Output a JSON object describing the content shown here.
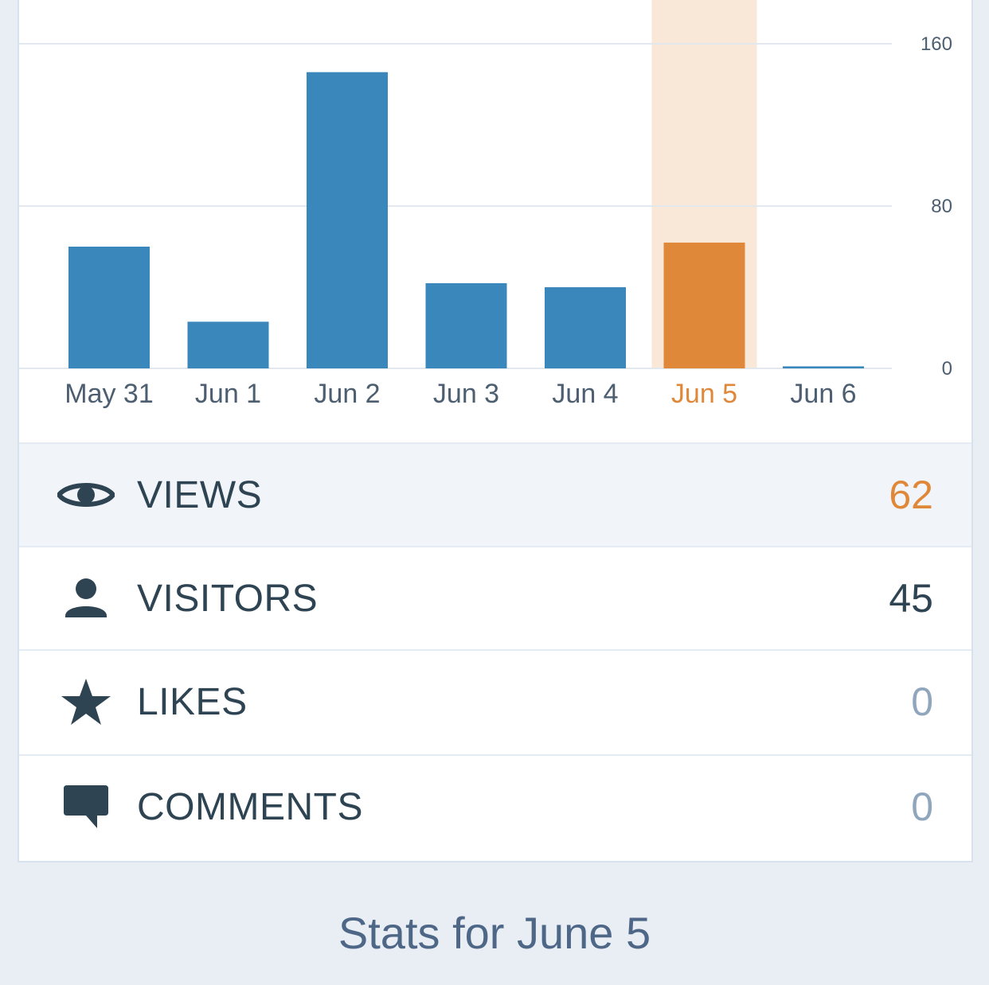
{
  "colors": {
    "bar": "#3a87bb",
    "bar_selected": "#e08839",
    "highlight_band": "#f9e8d8",
    "grid": "#e3e8ee",
    "tick_text": "#4c5e70",
    "label_text": "#4c5e70",
    "label_selected": "#e08839",
    "value_default": "#2e4453",
    "value_selected": "#e08839",
    "value_zero": "#8fa6bd",
    "icon": "#2e4453"
  },
  "chart_data": {
    "type": "bar",
    "categories": [
      "May 31",
      "Jun 1",
      "Jun 2",
      "Jun 3",
      "Jun 4",
      "Jun 5",
      "Jun 6"
    ],
    "values": [
      60,
      23,
      146,
      42,
      40,
      62,
      1
    ],
    "selected_index": 5,
    "ylim": [
      0,
      160
    ],
    "yticks": [
      {
        "value": 0,
        "label": "0"
      },
      {
        "value": 80,
        "label": "80"
      },
      {
        "value": 160,
        "label": "160"
      }
    ],
    "y_axis_side": "right",
    "grid": true,
    "title": "",
    "xlabel": "",
    "ylabel": ""
  },
  "stats": [
    {
      "key": "views",
      "icon": "eye-icon",
      "label": "VIEWS",
      "value": "62",
      "selected": true,
      "tone": "selected"
    },
    {
      "key": "visitors",
      "icon": "person-icon",
      "label": "VISITORS",
      "value": "45",
      "selected": false,
      "tone": "default"
    },
    {
      "key": "likes",
      "icon": "star-icon",
      "label": "LIKES",
      "value": "0",
      "selected": false,
      "tone": "zero"
    },
    {
      "key": "comments",
      "icon": "comment-icon",
      "label": "COMMENTS",
      "value": "0",
      "selected": false,
      "tone": "zero"
    }
  ],
  "footer": {
    "title": "Stats for June 5"
  }
}
